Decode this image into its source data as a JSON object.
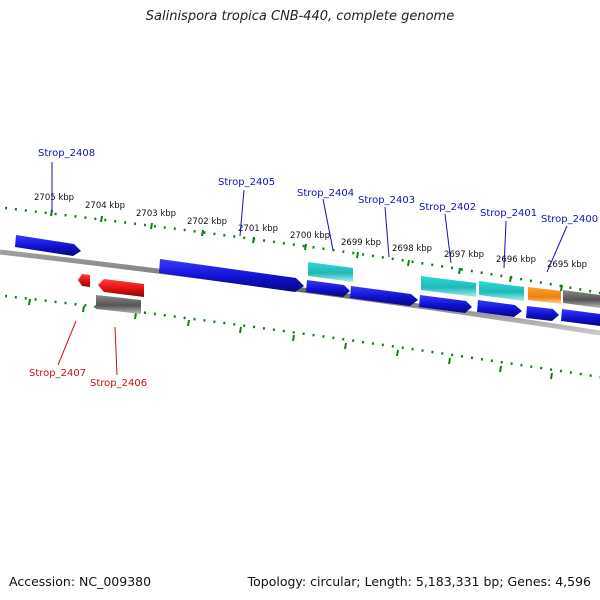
{
  "title": "Salinispora tropica CNB-440, complete genome",
  "footer": {
    "accession": "Accession: NC_009380",
    "summary": "Topology: circular; Length: 5,183,331 bp; Genes: 4,596"
  },
  "tick_labels": [
    "2705 kbp",
    "2704 kbp",
    "2703 kbp",
    "2702 kbp",
    "2701 kbp",
    "2700 kbp",
    "2699 kbp",
    "2698 kbp",
    "2697 kbp",
    "2696 kbp",
    "2695 kbp"
  ],
  "gene_labels": {
    "Strop_2408": "Strop_2408",
    "Strop_2405": "Strop_2405",
    "Strop_2404": "Strop_2404",
    "Strop_2403": "Strop_2403",
    "Strop_2402": "Strop_2402",
    "Strop_2401": "Strop_2401",
    "Strop_2400": "Strop_2400",
    "Strop_2407": "Strop_2407",
    "Strop_2406": "Strop_2406"
  },
  "colors": {
    "forward_gene": "#1010d0",
    "reverse_gene": "#e01010",
    "rna_gene": "#20c0c0",
    "other_gene": "#f08010",
    "pseudo_gene": "#606060",
    "backbone": "#808080",
    "tick": "#108010",
    "forward_label": "#1010c0",
    "reverse_label": "#cc1010"
  }
}
